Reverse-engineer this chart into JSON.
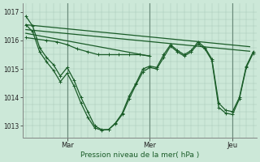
{
  "background_color": "#cce8d8",
  "grid_color": "#aac8b8",
  "line_color": "#1a5c28",
  "xlabel": "Pression niveau de la mer( hPa )",
  "ylim": [
    1012.6,
    1017.3
  ],
  "xlim": [
    -2,
    134
  ],
  "yticks": [
    1013,
    1014,
    1015,
    1016,
    1017
  ],
  "xtick_labels": [
    "Mar",
    "Mer",
    "Jeu"
  ],
  "xtick_positions": [
    24,
    72,
    120
  ],
  "vline_positions": [
    24,
    72,
    120
  ],
  "series": [
    {
      "x": [
        0,
        130
      ],
      "y": [
        1016.55,
        1015.78
      ],
      "marker": false,
      "lw": 0.9
    },
    {
      "x": [
        0,
        130
      ],
      "y": [
        1016.38,
        1015.62
      ],
      "marker": false,
      "lw": 0.9
    },
    {
      "x": [
        0,
        72
      ],
      "y": [
        1016.25,
        1015.45
      ],
      "marker": false,
      "lw": 0.9
    },
    {
      "x": [
        0,
        4,
        8,
        12,
        16,
        20,
        24,
        28,
        32,
        36,
        40,
        44,
        48,
        52,
        56,
        60,
        64,
        68,
        72,
        76,
        80,
        84,
        88,
        92,
        96,
        100,
        104,
        108,
        112,
        116,
        120,
        124,
        128,
        132
      ],
      "y": [
        1016.85,
        1016.5,
        1015.75,
        1015.4,
        1015.15,
        1014.75,
        1015.05,
        1014.6,
        1014.0,
        1013.5,
        1013.0,
        1012.87,
        1012.87,
        1013.1,
        1013.45,
        1014.05,
        1014.5,
        1015.0,
        1015.1,
        1015.05,
        1015.5,
        1015.85,
        1015.65,
        1015.5,
        1015.65,
        1015.95,
        1015.75,
        1015.35,
        1013.8,
        1013.55,
        1013.5,
        1014.0,
        1015.1,
        1015.6
      ],
      "marker": true,
      "lw": 0.9
    },
    {
      "x": [
        0,
        4,
        8,
        12,
        16,
        20,
        24,
        28,
        32,
        36,
        40,
        44,
        48,
        52,
        56,
        60,
        64,
        68,
        72,
        76,
        80,
        84,
        88,
        92,
        96,
        100,
        104,
        108,
        112,
        116,
        120,
        124,
        128,
        132
      ],
      "y": [
        1016.55,
        1016.3,
        1015.6,
        1015.25,
        1014.95,
        1014.55,
        1014.85,
        1014.4,
        1013.8,
        1013.3,
        1012.93,
        1012.85,
        1012.87,
        1013.08,
        1013.4,
        1013.95,
        1014.45,
        1014.9,
        1015.05,
        1015.0,
        1015.4,
        1015.8,
        1015.6,
        1015.45,
        1015.6,
        1015.88,
        1015.7,
        1015.3,
        1013.65,
        1013.45,
        1013.4,
        1013.95,
        1015.05,
        1015.55
      ],
      "marker": true,
      "lw": 0.9
    },
    {
      "x": [
        0,
        6,
        12,
        18,
        24,
        30,
        36,
        42,
        48,
        54,
        60,
        66,
        72
      ],
      "y": [
        1016.1,
        1016.05,
        1016.0,
        1015.95,
        1015.85,
        1015.7,
        1015.6,
        1015.5,
        1015.5,
        1015.5,
        1015.5,
        1015.5,
        1015.45
      ],
      "marker": true,
      "lw": 0.9
    }
  ]
}
